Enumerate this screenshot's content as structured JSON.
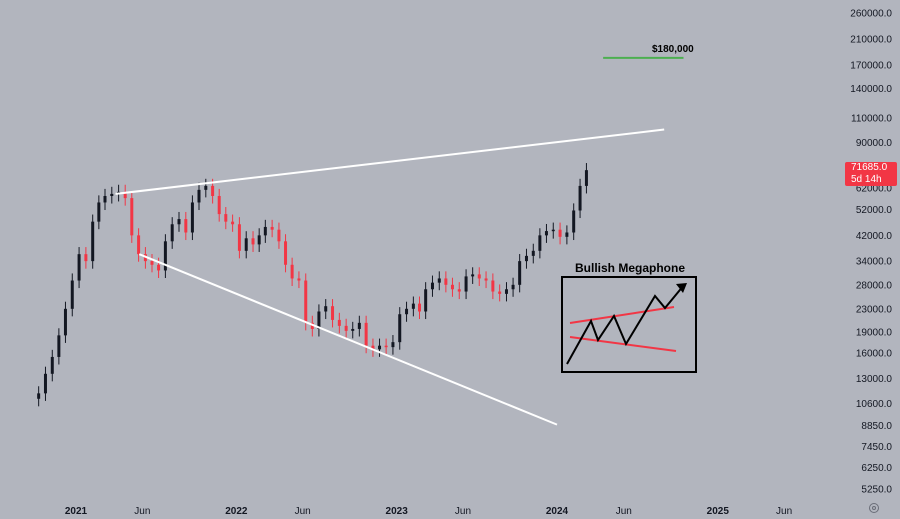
{
  "chart_data": {
    "type": "candlestick",
    "y_scale": "log",
    "grid": false,
    "y_ticks": [
      "260000.0",
      "210000.0",
      "170000.0",
      "140000.0",
      "110000.0",
      "90000.0",
      "71685.0",
      "62000.0",
      "52000.0",
      "42000.0",
      "34000.0",
      "28000.0",
      "23000.0",
      "19000.0",
      "16000.0",
      "13000.0",
      "10600.0",
      "8850.0",
      "7450.0",
      "6250.0",
      "5250.0"
    ],
    "y_tick_values": [
      260000,
      210000,
      170000,
      140000,
      110000,
      90000,
      71685,
      62000,
      52000,
      42000,
      34000,
      28000,
      23000,
      19000,
      16000,
      13000,
      10600,
      8850,
      7450,
      6250,
      5250
    ],
    "x_ticks": [
      {
        "label": "2021",
        "date": "2021-01-01",
        "year": true
      },
      {
        "label": "Jun",
        "date": "2021-06-01",
        "year": false
      },
      {
        "label": "2022",
        "date": "2022-01-01",
        "year": true
      },
      {
        "label": "Jun",
        "date": "2022-06-01",
        "year": false
      },
      {
        "label": "2023",
        "date": "2023-01-01",
        "year": true
      },
      {
        "label": "Jun",
        "date": "2023-06-01",
        "year": false
      },
      {
        "label": "2024",
        "date": "2024-01-01",
        "year": true
      },
      {
        "label": "Jun",
        "date": "2024-06-01",
        "year": false
      },
      {
        "label": "2025",
        "date": "2025-01-01",
        "year": true
      },
      {
        "label": "Jun",
        "date": "2025-06-01",
        "year": false
      }
    ],
    "series": [
      {
        "kind": "weekly-close",
        "up_color": "#131722",
        "down_color": "#f23645",
        "points": [
          [
            "2020-10-01",
            11000
          ],
          [
            "2020-10-15",
            11500
          ],
          [
            "2020-11-01",
            13500
          ],
          [
            "2020-11-15",
            15500
          ],
          [
            "2020-12-01",
            18500
          ],
          [
            "2020-12-15",
            23000
          ],
          [
            "2021-01-01",
            29000
          ],
          [
            "2021-01-15",
            36000
          ],
          [
            "2021-02-01",
            34000
          ],
          [
            "2021-02-15",
            47000
          ],
          [
            "2021-03-01",
            55000
          ],
          [
            "2021-03-15",
            58000
          ],
          [
            "2021-04-01",
            59000
          ],
          [
            "2021-04-15",
            60000
          ],
          [
            "2021-05-01",
            57000
          ],
          [
            "2021-05-15",
            42000
          ],
          [
            "2021-06-01",
            36000
          ],
          [
            "2021-06-15",
            34000
          ],
          [
            "2021-07-01",
            33000
          ],
          [
            "2021-07-15",
            31500
          ],
          [
            "2021-08-01",
            40000
          ],
          [
            "2021-08-15",
            46000
          ],
          [
            "2021-09-01",
            48000
          ],
          [
            "2021-09-15",
            43000
          ],
          [
            "2021-10-01",
            55000
          ],
          [
            "2021-10-15",
            61000
          ],
          [
            "2021-11-01",
            63000
          ],
          [
            "2021-11-15",
            58000
          ],
          [
            "2021-12-01",
            50000
          ],
          [
            "2021-12-15",
            47000
          ],
          [
            "2022-01-01",
            46000
          ],
          [
            "2022-01-15",
            37000
          ],
          [
            "2022-02-01",
            41000
          ],
          [
            "2022-02-15",
            39000
          ],
          [
            "2022-03-01",
            42000
          ],
          [
            "2022-03-15",
            45000
          ],
          [
            "2022-04-01",
            44000
          ],
          [
            "2022-04-15",
            40000
          ],
          [
            "2022-05-01",
            33000
          ],
          [
            "2022-05-15",
            29500
          ],
          [
            "2022-06-01",
            29000
          ],
          [
            "2022-06-15",
            20500
          ],
          [
            "2022-07-01",
            19500
          ],
          [
            "2022-07-15",
            22500
          ],
          [
            "2022-08-01",
            23500
          ],
          [
            "2022-08-15",
            21000
          ],
          [
            "2022-09-01",
            20000
          ],
          [
            "2022-09-15",
            19200
          ],
          [
            "2022-10-01",
            19500
          ],
          [
            "2022-10-15",
            20500
          ],
          [
            "2022-11-01",
            17000
          ],
          [
            "2022-11-15",
            16500
          ],
          [
            "2022-12-01",
            17000
          ],
          [
            "2022-12-15",
            16800
          ],
          [
            "2023-01-01",
            17500
          ],
          [
            "2023-01-15",
            22000
          ],
          [
            "2023-02-01",
            23000
          ],
          [
            "2023-02-15",
            24000
          ],
          [
            "2023-03-01",
            22500
          ],
          [
            "2023-03-15",
            27000
          ],
          [
            "2023-04-01",
            28500
          ],
          [
            "2023-04-15",
            29500
          ],
          [
            "2023-05-01",
            28000
          ],
          [
            "2023-05-15",
            27000
          ],
          [
            "2023-06-01",
            26500
          ],
          [
            "2023-06-15",
            30000
          ],
          [
            "2023-07-01",
            30500
          ],
          [
            "2023-07-15",
            29500
          ],
          [
            "2023-08-01",
            29000
          ],
          [
            "2023-08-15",
            26500
          ],
          [
            "2023-09-01",
            26000
          ],
          [
            "2023-09-15",
            27000
          ],
          [
            "2023-10-01",
            28000
          ],
          [
            "2023-10-15",
            34000
          ],
          [
            "2023-11-01",
            35500
          ],
          [
            "2023-11-15",
            37000
          ],
          [
            "2023-12-01",
            42000
          ],
          [
            "2023-12-15",
            43500
          ],
          [
            "2024-01-01",
            44000
          ],
          [
            "2024-01-15",
            41500
          ],
          [
            "2024-02-01",
            43000
          ],
          [
            "2024-02-15",
            51500
          ],
          [
            "2024-03-01",
            63000
          ],
          [
            "2024-03-15",
            71685
          ]
        ]
      }
    ],
    "trendlines": [
      {
        "name": "upper-resistance",
        "color": "#ffffff",
        "from": [
          "2021-04-01",
          59000
        ],
        "to": [
          "2024-09-01",
          100000
        ]
      },
      {
        "name": "lower-support",
        "color": "#ffffff",
        "from": [
          "2021-05-25",
          36000
        ],
        "to": [
          "2024-01-01",
          8900
        ]
      },
      {
        "name": "target-line",
        "color": "#4caf50",
        "from": [
          "2024-04-15",
          180000
        ],
        "to": [
          "2024-10-15",
          180000
        ]
      }
    ],
    "annotations": {
      "price_badge_value": "71685.0",
      "price_badge_time": "5d 14h",
      "target_label": "$180,000",
      "pattern_title": "Bullish Megaphone"
    }
  }
}
